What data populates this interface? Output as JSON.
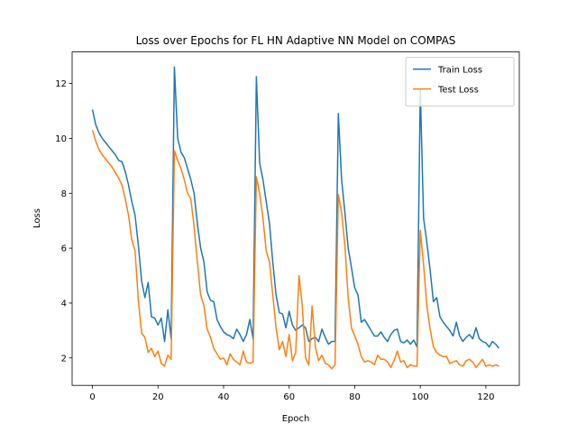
{
  "chart_data": {
    "type": "line",
    "title": "Loss over Epochs for FL HN Adaptive NN Model on COMPAS",
    "xlabel": "Epoch",
    "ylabel": "Loss",
    "x": [
      0,
      1,
      2,
      3,
      4,
      5,
      6,
      7,
      8,
      9,
      10,
      11,
      12,
      13,
      14,
      15,
      16,
      17,
      18,
      19,
      20,
      21,
      22,
      23,
      24,
      25,
      26,
      27,
      28,
      29,
      30,
      31,
      32,
      33,
      34,
      35,
      36,
      37,
      38,
      39,
      40,
      41,
      42,
      43,
      44,
      45,
      46,
      47,
      48,
      49,
      50,
      51,
      52,
      53,
      54,
      55,
      56,
      57,
      58,
      59,
      60,
      61,
      62,
      63,
      64,
      65,
      66,
      67,
      68,
      69,
      70,
      71,
      72,
      73,
      74,
      75,
      76,
      77,
      78,
      79,
      80,
      81,
      82,
      83,
      84,
      85,
      86,
      87,
      88,
      89,
      90,
      91,
      92,
      93,
      94,
      95,
      96,
      97,
      98,
      99,
      100,
      101,
      102,
      103,
      104,
      105,
      106,
      107,
      108,
      109,
      110,
      111,
      112,
      113,
      114,
      115,
      116,
      117,
      118,
      119,
      120,
      121,
      122,
      123,
      124
    ],
    "series": [
      {
        "name": "Train Loss",
        "color": "#1f77b4",
        "values": [
          11.05,
          10.5,
          10.2,
          10.0,
          9.85,
          9.7,
          9.55,
          9.4,
          9.2,
          9.15,
          8.8,
          8.3,
          7.7,
          7.2,
          6.1,
          4.8,
          4.2,
          4.75,
          3.5,
          3.45,
          3.2,
          3.45,
          2.6,
          3.75,
          2.7,
          12.6,
          10.0,
          9.5,
          9.3,
          8.9,
          8.5,
          8.0,
          6.9,
          6.0,
          5.5,
          4.4,
          4.1,
          4.05,
          3.4,
          3.15,
          2.95,
          2.85,
          2.8,
          2.7,
          3.05,
          2.85,
          2.6,
          2.85,
          3.4,
          2.7,
          12.25,
          9.1,
          8.5,
          7.7,
          6.9,
          5.5,
          4.3,
          3.65,
          3.6,
          3.1,
          3.7,
          3.2,
          3.0,
          3.1,
          3.2,
          3.1,
          2.6,
          2.7,
          2.75,
          2.6,
          3.05,
          2.75,
          2.5,
          2.6,
          2.6,
          10.9,
          8.5,
          7.3,
          6.0,
          5.3,
          4.55,
          4.3,
          3.3,
          3.4,
          3.2,
          3.0,
          2.8,
          2.8,
          2.95,
          2.75,
          2.6,
          2.85,
          3.0,
          3.05,
          2.6,
          2.55,
          2.65,
          2.5,
          2.65,
          2.4,
          11.8,
          7.1,
          6.2,
          5.2,
          4.05,
          4.2,
          3.5,
          3.3,
          3.15,
          3.0,
          2.8,
          3.3,
          2.8,
          2.6,
          2.75,
          2.85,
          2.7,
          3.1,
          2.7,
          2.6,
          2.55,
          2.4,
          2.6,
          2.5,
          2.35
        ]
      },
      {
        "name": "Test Loss",
        "color": "#ff7f0e",
        "values": [
          10.3,
          9.9,
          9.6,
          9.4,
          9.25,
          9.1,
          8.95,
          8.75,
          8.55,
          8.3,
          7.8,
          7.2,
          6.3,
          5.9,
          4.1,
          2.9,
          2.75,
          2.2,
          2.35,
          2.05,
          2.25,
          1.8,
          1.7,
          2.1,
          1.95,
          9.55,
          9.2,
          8.9,
          8.5,
          8.0,
          7.8,
          6.8,
          5.5,
          4.3,
          3.9,
          3.05,
          2.75,
          2.35,
          2.15,
          1.95,
          2.0,
          1.75,
          2.15,
          1.95,
          1.85,
          1.75,
          2.25,
          1.85,
          1.8,
          1.85,
          8.6,
          8.0,
          7.1,
          5.9,
          5.5,
          4.3,
          3.1,
          2.3,
          2.6,
          2.05,
          2.85,
          1.9,
          2.2,
          5.0,
          3.9,
          2.0,
          1.75,
          3.9,
          2.4,
          1.9,
          2.1,
          1.8,
          1.75,
          1.6,
          1.75,
          7.95,
          7.3,
          6.1,
          4.2,
          3.1,
          2.8,
          2.5,
          2.05,
          1.85,
          1.9,
          1.85,
          1.75,
          2.1,
          1.95,
          1.95,
          1.85,
          1.65,
          1.9,
          2.25,
          1.85,
          1.9,
          1.65,
          1.75,
          1.7,
          1.7,
          6.65,
          5.4,
          3.9,
          3.05,
          2.4,
          2.2,
          2.1,
          2.05,
          2.05,
          1.8,
          1.85,
          1.9,
          1.75,
          1.7,
          1.9,
          1.95,
          1.85,
          1.65,
          1.8,
          1.95,
          1.7,
          1.75,
          1.7,
          1.75,
          1.7
        ]
      }
    ],
    "xlim": [
      -6.2,
      130.2
    ],
    "xticks": [
      0,
      20,
      40,
      60,
      80,
      100,
      120
    ],
    "ylim": [
      1.0,
      13.15
    ],
    "yticks": [
      2,
      4,
      6,
      8,
      10,
      12
    ],
    "grid": false,
    "legend": "upper right"
  }
}
